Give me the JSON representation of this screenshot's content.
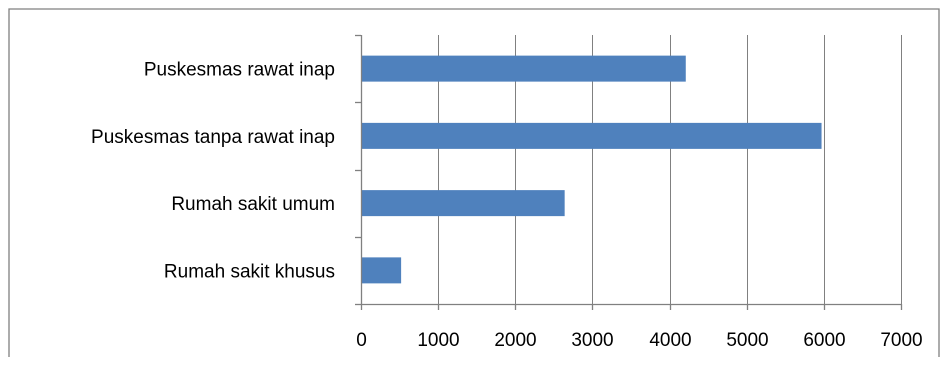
{
  "chart_data": {
    "type": "bar",
    "orientation": "horizontal",
    "categories": [
      "Puskesmas rawat inap",
      "Puskesmas tanpa rawat inap",
      "Rumah sakit umum",
      "Rumah sakit khusus"
    ],
    "values": [
      4210,
      5970,
      2640,
      520
    ],
    "xlim": [
      0,
      7000
    ],
    "xticks": [
      0,
      1000,
      2000,
      3000,
      4000,
      5000,
      6000,
      7000
    ],
    "grid": true,
    "legend": "none",
    "bar_color": "#4f81bd"
  }
}
